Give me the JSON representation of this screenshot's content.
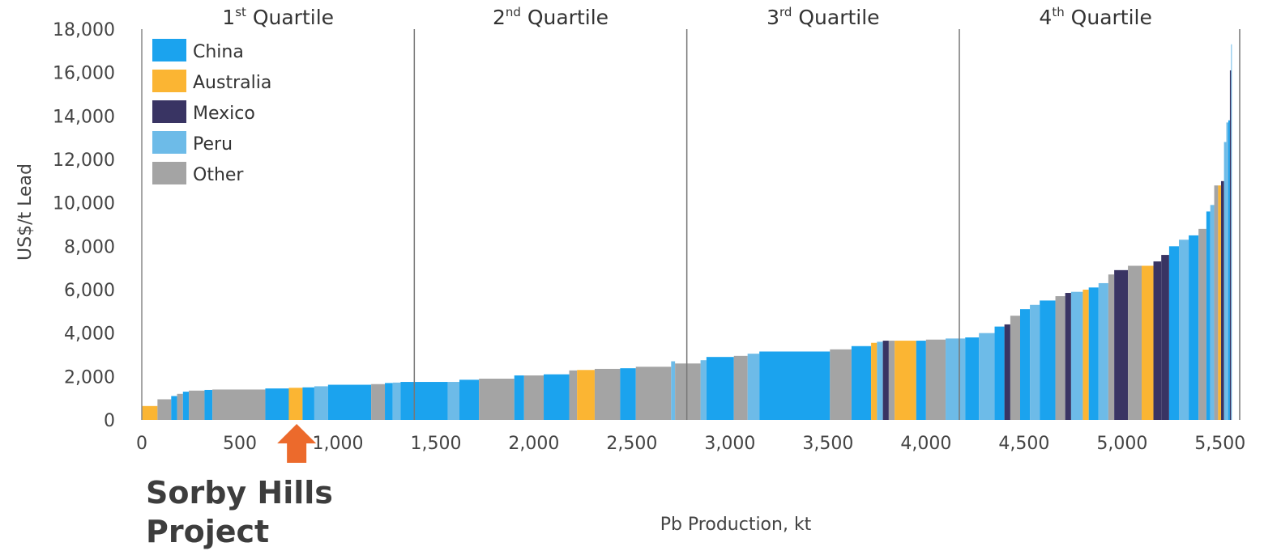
{
  "chart_data": {
    "type": "bar",
    "title": "",
    "xlabel": "Pb Production, kt",
    "ylabel": "US$/t Lead",
    "xlim": [
      0,
      5600
    ],
    "ylim": [
      0,
      18000
    ],
    "xticks": [
      "0",
      "500",
      "1,000",
      "1,500",
      "2,000",
      "2,500",
      "3,000",
      "3,500",
      "4,000",
      "4,500",
      "5,000",
      "5,500"
    ],
    "yticks": [
      "0",
      "2,000",
      "4,000",
      "6,000",
      "8,000",
      "10,000",
      "12,000",
      "14,000",
      "16,000",
      "18,000"
    ],
    "grid": false,
    "legend": {
      "position": "top-left",
      "entries": [
        {
          "name": "China",
          "color": "#1ba3ee"
        },
        {
          "name": "Australia",
          "color": "#fbb533"
        },
        {
          "name": "Mexico",
          "color": "#393463"
        },
        {
          "name": "Peru",
          "color": "#6dbbe8"
        },
        {
          "name": "Other",
          "color": "#a4a4a4"
        }
      ]
    },
    "quartiles": [
      {
        "base": "1",
        "sup": "st",
        "text": "Quartile",
        "start": 0,
        "end": 1390
      },
      {
        "base": "2",
        "sup": "nd",
        "text": "Quartile",
        "start": 1390,
        "end": 2780
      },
      {
        "base": "3",
        "sup": "rd",
        "text": "Quartile",
        "start": 2780,
        "end": 4170
      },
      {
        "base": "4",
        "sup": "th",
        "text": "Quartile",
        "start": 4170,
        "end": 5560
      }
    ],
    "series": [
      {
        "name": "China",
        "color": "#1ba3ee"
      },
      {
        "name": "Australia",
        "color": "#fbb533"
      },
      {
        "name": "Mexico",
        "color": "#393463"
      },
      {
        "name": "Peru",
        "color": "#6dbbe8"
      },
      {
        "name": "Other",
        "color": "#a4a4a4"
      }
    ],
    "bars": [
      {
        "x0": 0,
        "x1": 80,
        "y": 640,
        "country": "Australia"
      },
      {
        "x0": 80,
        "x1": 150,
        "y": 950,
        "country": "Other"
      },
      {
        "x0": 150,
        "x1": 180,
        "y": 1100,
        "country": "China"
      },
      {
        "x0": 180,
        "x1": 210,
        "y": 1200,
        "country": "Other"
      },
      {
        "x0": 210,
        "x1": 240,
        "y": 1300,
        "country": "China"
      },
      {
        "x0": 240,
        "x1": 320,
        "y": 1350,
        "country": "Other"
      },
      {
        "x0": 320,
        "x1": 360,
        "y": 1380,
        "country": "China"
      },
      {
        "x0": 360,
        "x1": 630,
        "y": 1400,
        "country": "Other"
      },
      {
        "x0": 630,
        "x1": 750,
        "y": 1450,
        "country": "China"
      },
      {
        "x0": 750,
        "x1": 820,
        "y": 1480,
        "country": "Australia"
      },
      {
        "x0": 820,
        "x1": 880,
        "y": 1500,
        "country": "China"
      },
      {
        "x0": 880,
        "x1": 950,
        "y": 1550,
        "country": "Peru"
      },
      {
        "x0": 950,
        "x1": 1170,
        "y": 1620,
        "country": "China"
      },
      {
        "x0": 1170,
        "x1": 1240,
        "y": 1650,
        "country": "Other"
      },
      {
        "x0": 1240,
        "x1": 1280,
        "y": 1700,
        "country": "China"
      },
      {
        "x0": 1280,
        "x1": 1320,
        "y": 1720,
        "country": "Peru"
      },
      {
        "x0": 1320,
        "x1": 1560,
        "y": 1750,
        "country": "China"
      },
      {
        "x0": 1560,
        "x1": 1620,
        "y": 1750,
        "country": "Peru"
      },
      {
        "x0": 1620,
        "x1": 1720,
        "y": 1850,
        "country": "China"
      },
      {
        "x0": 1720,
        "x1": 1900,
        "y": 1900,
        "country": "Other"
      },
      {
        "x0": 1900,
        "x1": 1950,
        "y": 2050,
        "country": "China"
      },
      {
        "x0": 1950,
        "x1": 2050,
        "y": 2050,
        "country": "Other"
      },
      {
        "x0": 2050,
        "x1": 2180,
        "y": 2100,
        "country": "China"
      },
      {
        "x0": 2180,
        "x1": 2220,
        "y": 2280,
        "country": "Other"
      },
      {
        "x0": 2220,
        "x1": 2310,
        "y": 2300,
        "country": "Australia"
      },
      {
        "x0": 2310,
        "x1": 2440,
        "y": 2350,
        "country": "Other"
      },
      {
        "x0": 2440,
        "x1": 2520,
        "y": 2380,
        "country": "China"
      },
      {
        "x0": 2520,
        "x1": 2700,
        "y": 2450,
        "country": "Other"
      },
      {
        "x0": 2700,
        "x1": 2720,
        "y": 2700,
        "country": "Peru"
      },
      {
        "x0": 2720,
        "x1": 2850,
        "y": 2600,
        "country": "Other"
      },
      {
        "x0": 2850,
        "x1": 2880,
        "y": 2750,
        "country": "Peru"
      },
      {
        "x0": 2880,
        "x1": 3020,
        "y": 2900,
        "country": "China"
      },
      {
        "x0": 3020,
        "x1": 3090,
        "y": 2950,
        "country": "Other"
      },
      {
        "x0": 3090,
        "x1": 3150,
        "y": 3050,
        "country": "Peru"
      },
      {
        "x0": 3150,
        "x1": 3510,
        "y": 3150,
        "country": "China"
      },
      {
        "x0": 3510,
        "x1": 3620,
        "y": 3250,
        "country": "Other"
      },
      {
        "x0": 3620,
        "x1": 3720,
        "y": 3400,
        "country": "China"
      },
      {
        "x0": 3720,
        "x1": 3750,
        "y": 3550,
        "country": "Australia"
      },
      {
        "x0": 3750,
        "x1": 3780,
        "y": 3600,
        "country": "Peru"
      },
      {
        "x0": 3780,
        "x1": 3810,
        "y": 3650,
        "country": "Mexico"
      },
      {
        "x0": 3810,
        "x1": 3840,
        "y": 3650,
        "country": "Other"
      },
      {
        "x0": 3840,
        "x1": 3950,
        "y": 3650,
        "country": "Australia"
      },
      {
        "x0": 3950,
        "x1": 4000,
        "y": 3650,
        "country": "China"
      },
      {
        "x0": 4000,
        "x1": 4100,
        "y": 3700,
        "country": "Other"
      },
      {
        "x0": 4100,
        "x1": 4200,
        "y": 3750,
        "country": "Peru"
      },
      {
        "x0": 4200,
        "x1": 4270,
        "y": 3800,
        "country": "China"
      },
      {
        "x0": 4270,
        "x1": 4350,
        "y": 4000,
        "country": "Peru"
      },
      {
        "x0": 4350,
        "x1": 4400,
        "y": 4300,
        "country": "China"
      },
      {
        "x0": 4400,
        "x1": 4430,
        "y": 4400,
        "country": "Mexico"
      },
      {
        "x0": 4430,
        "x1": 4480,
        "y": 4800,
        "country": "Other"
      },
      {
        "x0": 4480,
        "x1": 4530,
        "y": 5100,
        "country": "China"
      },
      {
        "x0": 4530,
        "x1": 4580,
        "y": 5300,
        "country": "Peru"
      },
      {
        "x0": 4580,
        "x1": 4660,
        "y": 5500,
        "country": "China"
      },
      {
        "x0": 4660,
        "x1": 4710,
        "y": 5700,
        "country": "Other"
      },
      {
        "x0": 4710,
        "x1": 4740,
        "y": 5850,
        "country": "Mexico"
      },
      {
        "x0": 4740,
        "x1": 4800,
        "y": 5900,
        "country": "Peru"
      },
      {
        "x0": 4800,
        "x1": 4830,
        "y": 6000,
        "country": "Australia"
      },
      {
        "x0": 4830,
        "x1": 4880,
        "y": 6100,
        "country": "China"
      },
      {
        "x0": 4880,
        "x1": 4930,
        "y": 6300,
        "country": "Peru"
      },
      {
        "x0": 4930,
        "x1": 4960,
        "y": 6700,
        "country": "Other"
      },
      {
        "x0": 4960,
        "x1": 5030,
        "y": 6900,
        "country": "Mexico"
      },
      {
        "x0": 5030,
        "x1": 5100,
        "y": 7100,
        "country": "Other"
      },
      {
        "x0": 5100,
        "x1": 5160,
        "y": 7100,
        "country": "Australia"
      },
      {
        "x0": 5160,
        "x1": 5200,
        "y": 7300,
        "country": "Mexico"
      },
      {
        "x0": 5200,
        "x1": 5240,
        "y": 7600,
        "country": "Mexico"
      },
      {
        "x0": 5240,
        "x1": 5290,
        "y": 8000,
        "country": "China"
      },
      {
        "x0": 5290,
        "x1": 5340,
        "y": 8300,
        "country": "Peru"
      },
      {
        "x0": 5340,
        "x1": 5390,
        "y": 8500,
        "country": "China"
      },
      {
        "x0": 5390,
        "x1": 5430,
        "y": 8800,
        "country": "Other"
      },
      {
        "x0": 5430,
        "x1": 5450,
        "y": 9600,
        "country": "China"
      },
      {
        "x0": 5450,
        "x1": 5470,
        "y": 9900,
        "country": "Peru"
      },
      {
        "x0": 5470,
        "x1": 5490,
        "y": 10800,
        "country": "Other"
      },
      {
        "x0": 5490,
        "x1": 5505,
        "y": 10800,
        "country": "Australia"
      },
      {
        "x0": 5505,
        "x1": 5520,
        "y": 11000,
        "country": "Mexico"
      },
      {
        "x0": 5520,
        "x1": 5532,
        "y": 12800,
        "country": "Peru"
      },
      {
        "x0": 5532,
        "x1": 5542,
        "y": 13700,
        "country": "Peru"
      },
      {
        "x0": 5542,
        "x1": 5550,
        "y": 13800,
        "country": "China"
      },
      {
        "x0": 5550,
        "x1": 5556,
        "y": 16100,
        "country": "Mexico"
      },
      {
        "x0": 5556,
        "x1": 5560,
        "y": 17300,
        "country": "Peru"
      }
    ],
    "annotation": {
      "text_line1": "Sorby Hills",
      "text_line2": "Project",
      "x": 790,
      "arrow_color": "#ec6a2c"
    }
  }
}
